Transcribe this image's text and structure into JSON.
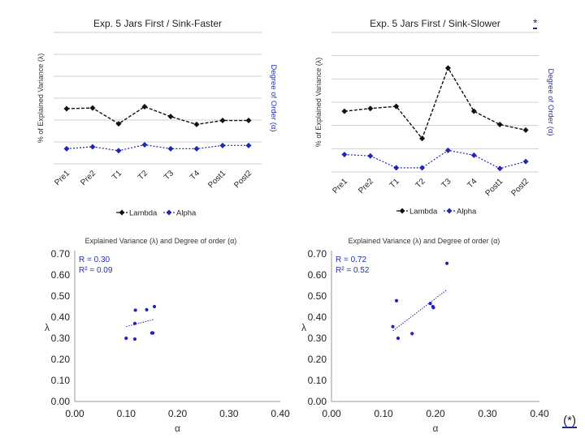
{
  "chart_data": [
    {
      "type": "line",
      "title": "Exp. 5 Jars First / Sink-Faster",
      "ylabel_left": "% of Explained Variance (λ)",
      "ylabel_right": "Degree of Order (α)",
      "categories": [
        "Pre1",
        "Pre2",
        "T1",
        "T2",
        "T3",
        "T4",
        "Post1",
        "Post2"
      ],
      "ylim": [
        0,
        1
      ],
      "grid": true,
      "series": [
        {
          "name": "Lambda",
          "color": "#111111",
          "values": [
            0.42,
            0.425,
            0.305,
            0.435,
            0.36,
            0.3,
            0.33,
            0.33
          ]
        },
        {
          "name": "Alpha",
          "color": "#2326b5",
          "values": [
            0.115,
            0.13,
            0.1,
            0.145,
            0.115,
            0.115,
            0.14,
            0.14
          ]
        }
      ],
      "legend": [
        "Lambda",
        "Alpha"
      ]
    },
    {
      "type": "line",
      "title": "Exp. 5 Jars First / Sink-Slower",
      "ylabel_left": "% of Explained Variance (λ)",
      "ylabel_right": "Degree of Order (α)",
      "categories": [
        "Pre1",
        "Pre2",
        "T1",
        "T2",
        "T3",
        "T4",
        "Post1",
        "Post2"
      ],
      "ylim": [
        0,
        1
      ],
      "grid": true,
      "series": [
        {
          "name": "Lambda",
          "color": "#111111",
          "values": [
            0.435,
            0.455,
            0.47,
            0.24,
            0.745,
            0.435,
            0.34,
            0.3
          ]
        },
        {
          "name": "Alpha",
          "color": "#2326b5",
          "values": [
            0.125,
            0.115,
            0.03,
            0.03,
            0.155,
            0.12,
            0.025,
            0.075
          ]
        }
      ],
      "legend": [
        "Lambda",
        "Alpha"
      ],
      "annotation": "*"
    },
    {
      "type": "scatter",
      "title": "Explained Variance (λ) and Degree of order (α)",
      "xlabel": "α",
      "ylabel": "λ",
      "xlim": [
        0,
        0.4
      ],
      "ylim": [
        0,
        0.7
      ],
      "xticks": [
        "0.00",
        "0.10",
        "0.20",
        "0.30",
        "0.40"
      ],
      "yticks": [
        "0.00",
        "0.10",
        "0.20",
        "0.30",
        "0.40",
        "0.50",
        "0.60",
        "0.70"
      ],
      "r_text": "R = 0.30",
      "r2_text": "R² = 0.09",
      "points": [
        [
          0.1,
          0.3
        ],
        [
          0.117,
          0.296
        ],
        [
          0.117,
          0.37
        ],
        [
          0.118,
          0.433
        ],
        [
          0.14,
          0.435
        ],
        [
          0.15,
          0.325
        ],
        [
          0.152,
          0.325
        ],
        [
          0.155,
          0.45
        ]
      ],
      "trendline": [
        [
          0.1,
          0.355
        ],
        [
          0.155,
          0.39
        ]
      ]
    },
    {
      "type": "scatter",
      "title": "Explained Variance (λ) and Degree of order (α)",
      "xlabel": "α",
      "ylabel": "λ",
      "xlim": [
        0,
        0.4
      ],
      "ylim": [
        0,
        0.7
      ],
      "xticks": [
        "0.00",
        "0.10",
        "0.20",
        "0.30",
        "0.40"
      ],
      "yticks": [
        "0.00",
        "0.10",
        "0.20",
        "0.30",
        "0.40",
        "0.50",
        "0.60",
        "0.70"
      ],
      "r_text": "R = 0.72",
      "r2_text": "R² = 0.52",
      "points": [
        [
          0.118,
          0.355
        ],
        [
          0.125,
          0.478
        ],
        [
          0.128,
          0.3
        ],
        [
          0.155,
          0.322
        ],
        [
          0.19,
          0.465
        ],
        [
          0.195,
          0.45
        ],
        [
          0.196,
          0.445
        ],
        [
          0.222,
          0.655
        ]
      ],
      "trendline": [
        [
          0.118,
          0.335
        ],
        [
          0.222,
          0.53
        ]
      ]
    }
  ],
  "corner_mark": "(*)"
}
